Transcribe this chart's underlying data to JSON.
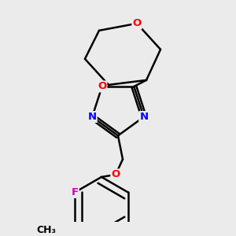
{
  "bg_color": "#ebebeb",
  "bond_color": "#000000",
  "bond_width": 1.8,
  "atom_colors": {
    "O": "#ff0000",
    "N": "#0000ff",
    "F": "#cc00cc",
    "C": "#000000"
  },
  "font_size": 9.5,
  "figsize": [
    3.0,
    3.0
  ],
  "dpi": 100
}
